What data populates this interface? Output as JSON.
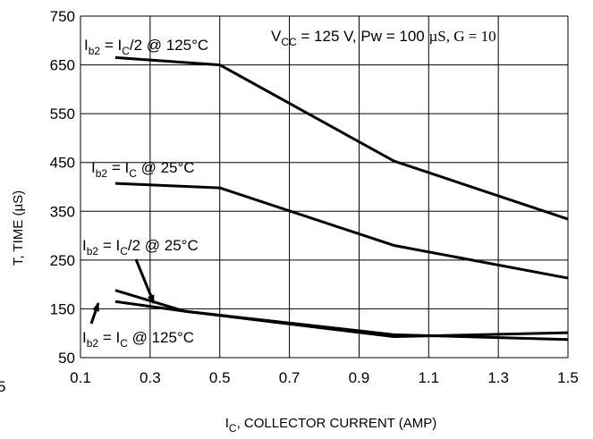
{
  "chart_data": {
    "type": "line",
    "title": "",
    "xlabel_main": "I",
    "xlabel_sub": "C",
    "xlabel_rest": ", COLLECTOR CURRENT (AMP)",
    "ylabel": "T, TIME (µS)",
    "xlim": [
      0.1,
      1.5
    ],
    "ylim": [
      50,
      750
    ],
    "xticks": [
      0.1,
      0.3,
      0.5,
      0.7,
      0.9,
      1.1,
      1.3,
      1.5
    ],
    "yticks": [
      50,
      150,
      250,
      350,
      450,
      550,
      650,
      750
    ],
    "xtick_labels": [
      "0.1",
      "0.3",
      "0.5",
      "0.7",
      "0.9",
      "1.1",
      "1.3",
      "1.5"
    ],
    "ytick_labels": [
      "50",
      "150",
      "250",
      "350",
      "450",
      "550",
      "650",
      "750"
    ],
    "stray_label": "5",
    "grid": true,
    "conditions": {
      "vcc_main": "V",
      "vcc_sub": "CC",
      "vcc_rest": " = 125 V, Pw = 100 ",
      "mu": "µS, G = 10"
    },
    "series": [
      {
        "x": [
          0.2,
          0.5,
          1.0,
          1.5
        ],
        "y": [
          665,
          650,
          453,
          334
        ]
      },
      {
        "x": [
          0.2,
          0.5,
          1.0,
          1.5
        ],
        "y": [
          407,
          398,
          280,
          213
        ]
      },
      {
        "x": [
          0.2,
          0.4,
          1.0,
          1.5
        ],
        "y": [
          188,
          145,
          97,
          87
        ]
      },
      {
        "x": [
          0.2,
          0.4,
          1.0,
          1.5
        ],
        "y": [
          165,
          145,
          93,
          101
        ]
      }
    ],
    "annotations": [
      {
        "i": "I",
        "b": "b2",
        "eq": " = I",
        "c": "C",
        "rest": "/2 @ 125°C"
      },
      {
        "i": "I",
        "b": "b2",
        "eq": " = I",
        "c": "C",
        "rest": " @ 25°C"
      },
      {
        "i": "I",
        "b": "b2",
        "eq": " = I",
        "c": "C",
        "rest": "/2 @ 25°C"
      },
      {
        "i": "I",
        "b": "b2",
        "eq": " = I",
        "c": "C",
        "rest": " @ 125°C"
      }
    ]
  }
}
